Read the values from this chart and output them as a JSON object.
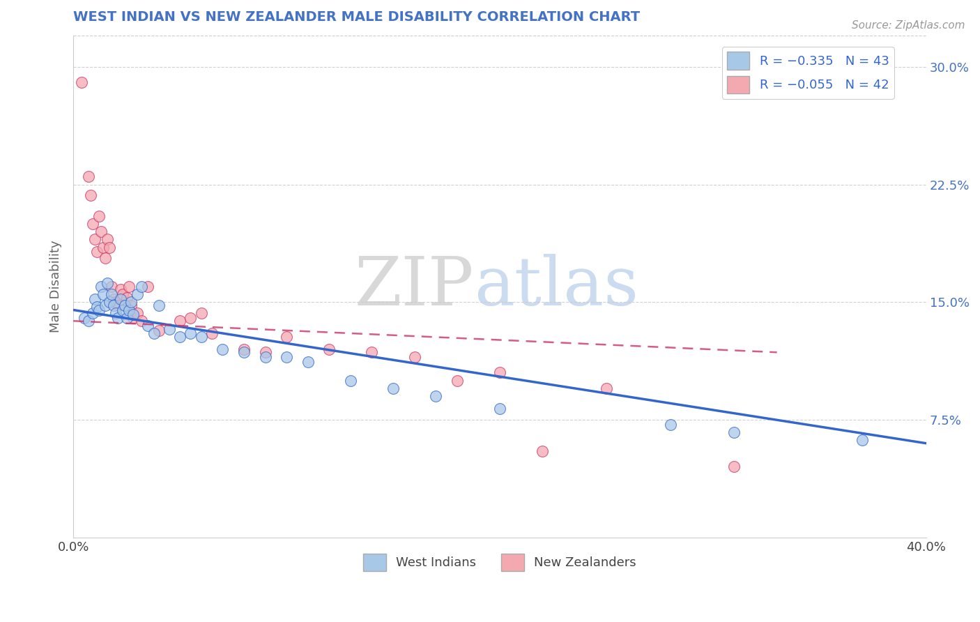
{
  "title": "WEST INDIAN VS NEW ZEALANDER MALE DISABILITY CORRELATION CHART",
  "source": "Source: ZipAtlas.com",
  "ylabel": "Male Disability",
  "xlim": [
    0.0,
    0.4
  ],
  "ylim": [
    0.0,
    0.32
  ],
  "yticks_right": [
    0.075,
    0.15,
    0.225,
    0.3
  ],
  "ytick_right_labels": [
    "7.5%",
    "15.0%",
    "22.5%",
    "30.0%"
  ],
  "legend_label1": "R = −0.335   N = 43",
  "legend_label2": "R = −0.055   N = 42",
  "legend_bottom1": "West Indians",
  "legend_bottom2": "New Zealanders",
  "color_blue": "#a8c8e8",
  "color_pink": "#f4a8b0",
  "line_blue": "#3366cc",
  "line_pink": "#cc3366",
  "bg_color": "#ffffff",
  "grid_color": "#cccccc",
  "title_color": "#4472c4",
  "axis_label_color": "#666666",
  "right_tick_color": "#4472c4",
  "wi_x": [
    0.005,
    0.007,
    0.009,
    0.01,
    0.011,
    0.012,
    0.013,
    0.014,
    0.015,
    0.016,
    0.017,
    0.018,
    0.019,
    0.02,
    0.021,
    0.022,
    0.023,
    0.024,
    0.025,
    0.026,
    0.027,
    0.028,
    0.03,
    0.032,
    0.035,
    0.038,
    0.04,
    0.045,
    0.05,
    0.055,
    0.06,
    0.07,
    0.08,
    0.09,
    0.1,
    0.11,
    0.13,
    0.15,
    0.17,
    0.2,
    0.28,
    0.31,
    0.37
  ],
  "wi_y": [
    0.14,
    0.138,
    0.143,
    0.152,
    0.147,
    0.145,
    0.16,
    0.155,
    0.148,
    0.162,
    0.15,
    0.155,
    0.148,
    0.143,
    0.14,
    0.152,
    0.145,
    0.148,
    0.14,
    0.145,
    0.15,
    0.142,
    0.155,
    0.16,
    0.135,
    0.13,
    0.148,
    0.133,
    0.128,
    0.13,
    0.128,
    0.12,
    0.118,
    0.115,
    0.115,
    0.112,
    0.1,
    0.095,
    0.09,
    0.082,
    0.072,
    0.067,
    0.062
  ],
  "nz_x": [
    0.004,
    0.007,
    0.008,
    0.009,
    0.01,
    0.011,
    0.012,
    0.013,
    0.014,
    0.015,
    0.016,
    0.017,
    0.018,
    0.019,
    0.02,
    0.021,
    0.022,
    0.023,
    0.024,
    0.025,
    0.026,
    0.027,
    0.028,
    0.03,
    0.032,
    0.035,
    0.04,
    0.05,
    0.055,
    0.06,
    0.065,
    0.08,
    0.09,
    0.1,
    0.12,
    0.14,
    0.16,
    0.18,
    0.2,
    0.22,
    0.25,
    0.31
  ],
  "nz_y": [
    0.29,
    0.23,
    0.218,
    0.2,
    0.19,
    0.182,
    0.205,
    0.195,
    0.185,
    0.178,
    0.19,
    0.185,
    0.16,
    0.152,
    0.15,
    0.148,
    0.158,
    0.155,
    0.148,
    0.153,
    0.16,
    0.148,
    0.14,
    0.143,
    0.138,
    0.16,
    0.132,
    0.138,
    0.14,
    0.143,
    0.13,
    0.12,
    0.118,
    0.128,
    0.12,
    0.118,
    0.115,
    0.1,
    0.105,
    0.055,
    0.095,
    0.045
  ],
  "wi_line_x0": 0.0,
  "wi_line_y0": 0.145,
  "wi_line_x1": 0.4,
  "wi_line_y1": 0.06,
  "nz_line_x0": 0.0,
  "nz_line_y0": 0.138,
  "nz_line_x1": 0.33,
  "nz_line_y1": 0.118
}
